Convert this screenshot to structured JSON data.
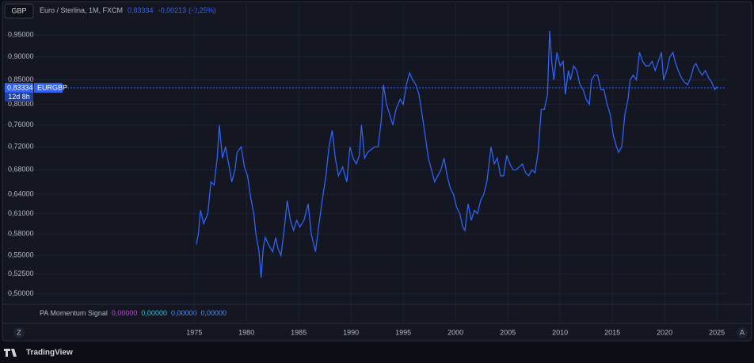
{
  "header": {
    "symbol": "GBP",
    "title": "Euro / Sterlina, 1M, FXCM",
    "last": {
      "value": 0.83334,
      "label": "0,83334"
    },
    "change": {
      "value": -0.00213,
      "label": "-0,00213"
    },
    "change_pct": {
      "value": -0.25,
      "label": "(-0,25%)"
    }
  },
  "chart_data": {
    "type": "line",
    "log_scale": true,
    "grid": true,
    "x": [
      1975.2,
      1975.4,
      1975.6,
      1975.9,
      1976.3,
      1976.6,
      1976.9,
      1977.2,
      1977.4,
      1977.7,
      1978.0,
      1978.3,
      1978.6,
      1978.9,
      1979.1,
      1979.5,
      1979.8,
      1980.1,
      1980.4,
      1980.7,
      1980.9,
      1981.2,
      1981.4,
      1981.6,
      1981.8,
      1982.1,
      1982.5,
      1982.8,
      1983.0,
      1983.3,
      1983.6,
      1983.9,
      1984.2,
      1984.5,
      1984.8,
      1985.1,
      1985.5,
      1985.9,
      1986.2,
      1986.6,
      1986.9,
      1987.2,
      1987.6,
      1987.9,
      1988.2,
      1988.5,
      1988.8,
      1989.2,
      1989.6,
      1989.9,
      1990.2,
      1990.5,
      1990.8,
      1991.0,
      1991.3,
      1991.6,
      1991.9,
      1992.3,
      1992.6,
      1992.9,
      1993.1,
      1993.4,
      1993.7,
      1994.0,
      1994.3,
      1994.7,
      1995.0,
      1995.3,
      1995.6,
      1995.9,
      1996.2,
      1996.5,
      1996.8,
      1997.1,
      1997.4,
      1997.7,
      1998.0,
      1998.3,
      1998.6,
      1998.9,
      1999.2,
      1999.5,
      1999.8,
      2000.1,
      2000.4,
      2000.7,
      2000.9,
      2001.2,
      2001.5,
      2001.8,
      2002.1,
      2002.4,
      2002.7,
      2003.0,
      2003.4,
      2003.7,
      2004.0,
      2004.3,
      2004.6,
      2004.9,
      2005.2,
      2005.5,
      2005.8,
      2006.1,
      2006.4,
      2006.7,
      2007.0,
      2007.3,
      2007.6,
      2007.9,
      2008.2,
      2008.5,
      2008.8,
      2009.0,
      2009.2,
      2009.4,
      2009.7,
      2010.0,
      2010.3,
      2010.5,
      2010.8,
      2011.0,
      2011.3,
      2011.6,
      2011.9,
      2012.2,
      2012.5,
      2012.8,
      2013.0,
      2013.3,
      2013.6,
      2013.9,
      2014.2,
      2014.5,
      2014.8,
      2015.1,
      2015.4,
      2015.6,
      2015.9,
      2016.2,
      2016.5,
      2016.7,
      2017.0,
      2017.3,
      2017.6,
      2017.9,
      2018.2,
      2018.5,
      2018.8,
      2019.1,
      2019.4,
      2019.7,
      2019.9,
      2020.2,
      2020.5,
      2020.8,
      2021.0,
      2021.3,
      2021.6,
      2021.9,
      2022.2,
      2022.5,
      2022.8,
      2023.0,
      2023.3,
      2023.6,
      2023.9,
      2024.2,
      2024.5,
      2024.8,
      2025.0,
      2025.1
    ],
    "series": [
      {
        "name": "EURGBP",
        "color": "#2f62f5",
        "values": [
          0.565,
          0.58,
          0.615,
          0.595,
          0.61,
          0.66,
          0.655,
          0.7,
          0.76,
          0.7,
          0.72,
          0.69,
          0.66,
          0.68,
          0.71,
          0.72,
          0.685,
          0.67,
          0.635,
          0.61,
          0.58,
          0.555,
          0.52,
          0.56,
          0.575,
          0.565,
          0.555,
          0.575,
          0.56,
          0.55,
          0.585,
          0.63,
          0.6,
          0.585,
          0.6,
          0.59,
          0.6,
          0.625,
          0.58,
          0.555,
          0.59,
          0.625,
          0.67,
          0.72,
          0.75,
          0.7,
          0.67,
          0.685,
          0.66,
          0.72,
          0.7,
          0.69,
          0.705,
          0.76,
          0.7,
          0.71,
          0.715,
          0.72,
          0.72,
          0.77,
          0.84,
          0.8,
          0.78,
          0.76,
          0.79,
          0.81,
          0.8,
          0.84,
          0.865,
          0.85,
          0.84,
          0.82,
          0.78,
          0.74,
          0.7,
          0.68,
          0.66,
          0.67,
          0.68,
          0.7,
          0.67,
          0.65,
          0.64,
          0.62,
          0.61,
          0.59,
          0.585,
          0.625,
          0.6,
          0.615,
          0.61,
          0.63,
          0.64,
          0.66,
          0.72,
          0.69,
          0.7,
          0.67,
          0.67,
          0.705,
          0.69,
          0.68,
          0.68,
          0.685,
          0.69,
          0.675,
          0.67,
          0.68,
          0.675,
          0.71,
          0.79,
          0.79,
          0.82,
          0.96,
          0.89,
          0.85,
          0.91,
          0.88,
          0.89,
          0.82,
          0.87,
          0.85,
          0.88,
          0.87,
          0.84,
          0.83,
          0.81,
          0.8,
          0.85,
          0.86,
          0.86,
          0.83,
          0.83,
          0.8,
          0.78,
          0.74,
          0.72,
          0.71,
          0.72,
          0.78,
          0.81,
          0.85,
          0.86,
          0.85,
          0.91,
          0.89,
          0.88,
          0.88,
          0.89,
          0.87,
          0.89,
          0.91,
          0.85,
          0.87,
          0.9,
          0.91,
          0.89,
          0.87,
          0.855,
          0.845,
          0.84,
          0.855,
          0.88,
          0.885,
          0.87,
          0.86,
          0.87,
          0.855,
          0.845,
          0.83,
          0.835,
          0.833
        ]
      }
    ],
    "xlim": [
      1956.8,
      2025.9
    ],
    "ylim": [
      0.488,
      0.977
    ],
    "xticks": [
      1975,
      1980,
      1985,
      1990,
      1995,
      2000,
      2005,
      2010,
      2015,
      2020,
      2025
    ],
    "yticks": [
      {
        "value": 0.95,
        "label": "0,95000"
      },
      {
        "value": 0.9,
        "label": "0,90000"
      },
      {
        "value": 0.85,
        "label": "0,85000"
      },
      {
        "value": 0.8,
        "label": "0,80000"
      },
      {
        "value": 0.76,
        "label": "0,76000"
      },
      {
        "value": 0.72,
        "label": "0,72000"
      },
      {
        "value": 0.68,
        "label": "0,68000"
      },
      {
        "value": 0.64,
        "label": "0,64000"
      },
      {
        "value": 0.61,
        "label": "0,61000"
      },
      {
        "value": 0.58,
        "label": "0,58000"
      },
      {
        "value": 0.55,
        "label": "0,55000"
      },
      {
        "value": 0.525,
        "label": "0,52500"
      },
      {
        "value": 0.5,
        "label": "0,50000"
      }
    ],
    "price_label": {
      "value": 0.83334,
      "label": "0,83334",
      "countdown": "12d 8h"
    }
  },
  "indicator": {
    "name": "PA Momentum Signal",
    "values": [
      {
        "value": 0,
        "label": "0,00000",
        "color": "#c040e0"
      },
      {
        "value": 0,
        "label": "0,00000",
        "color": "#26c6da"
      },
      {
        "value": 0,
        "label": "0,00000",
        "color": "#4a8cf7"
      },
      {
        "value": 0,
        "label": "0,00000",
        "color": "#4a8cf7"
      }
    ]
  },
  "axis_buttons": [
    "Z",
    "A"
  ],
  "footer": {
    "brand": "TradingView"
  }
}
